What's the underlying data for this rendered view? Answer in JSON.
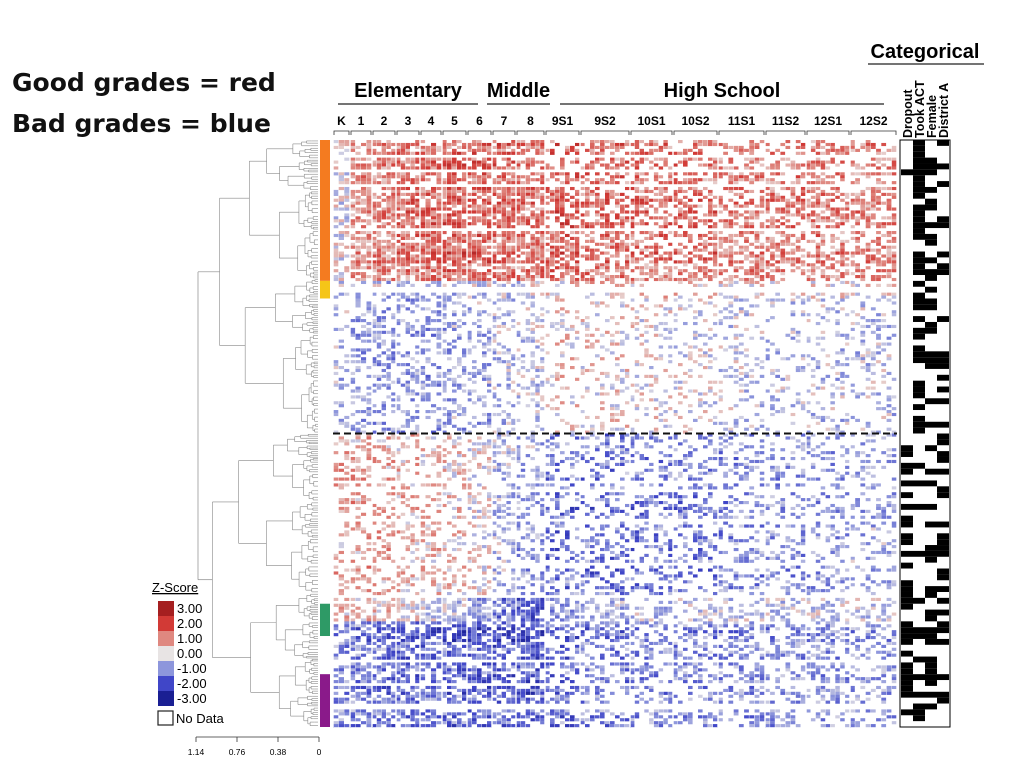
{
  "annotation": {
    "line1": "Good grades = red",
    "line2": "Bad grades = blue"
  },
  "chart_data": {
    "type": "heatmap",
    "title": "Categorical",
    "groups": [
      {
        "label": "Elementary",
        "columns": [
          "K",
          "1",
          "2",
          "3",
          "4",
          "5",
          "6"
        ]
      },
      {
        "label": "Middle",
        "columns": [
          "7",
          "8"
        ]
      },
      {
        "label": "High School",
        "columns": [
          "9S1",
          "9S2",
          "10S1",
          "10S2",
          "11S1",
          "11S2",
          "12S1",
          "12S2"
        ]
      }
    ],
    "categorical_columns": [
      "Dropout",
      "Took ACT",
      "Female",
      "District A"
    ],
    "legend": {
      "title": "Z-Score",
      "entries": [
        {
          "label": "3.00",
          "color": "#a51f20"
        },
        {
          "label": "2.00",
          "color": "#d23a36"
        },
        {
          "label": "1.00",
          "color": "#df8880"
        },
        {
          "label": "0.00",
          "color": "#e8e4e4"
        },
        {
          "label": "-1.00",
          "color": "#8d96dc"
        },
        {
          "label": "-2.00",
          "color": "#4046c8"
        },
        {
          "label": "-3.00",
          "color": "#1a1f93"
        }
      ],
      "no_data_label": "No Data"
    },
    "dendrogram_axis": {
      "ticks": [
        "1.14",
        "0.76",
        "0.38",
        "0"
      ]
    },
    "cluster_colors": [
      "#f47b20",
      "#f5c518",
      "#2e9a66",
      "#8a1a8a"
    ],
    "cluster_split_fraction": 0.5,
    "blocks": [
      {
        "rows": [
          0,
          0.24
        ],
        "trend": [
          -0.1,
          0.8,
          1.0,
          1.2,
          1.3,
          1.4,
          1.4,
          1.3,
          1.2,
          1.4,
          1.2,
          1.2,
          1.2,
          1.0,
          1.0,
          1.0,
          0.9
        ],
        "density": 0.8
      },
      {
        "rows": [
          0.24,
          0.27
        ],
        "trend": [
          -0.6,
          -0.5,
          -0.5,
          -0.4,
          -0.4,
          -0.4,
          -0.3,
          -0.3,
          -0.2,
          0.2,
          0.3,
          0.3,
          0.2,
          0.1,
          0.0,
          0.0,
          0.0
        ],
        "density": 0.7
      },
      {
        "rows": [
          0.27,
          0.5
        ],
        "trend": [
          -0.4,
          -0.7,
          -0.8,
          -0.8,
          -0.8,
          -0.7,
          -0.6,
          -0.4,
          -0.3,
          0.2,
          0.1,
          0.0,
          -0.1,
          -0.3,
          -0.4,
          -0.4,
          -0.4
        ],
        "density": 0.45
      },
      {
        "rows": [
          0.5,
          0.78
        ],
        "trend": [
          0.5,
          0.6,
          0.6,
          0.4,
          0.3,
          0.2,
          0.0,
          -0.4,
          -0.7,
          -1.3,
          -1.3,
          -1.2,
          -1.1,
          -1.0,
          -0.9,
          -0.8,
          -0.7
        ],
        "density": 0.5
      },
      {
        "rows": [
          0.78,
          0.82
        ],
        "trend": [
          0.4,
          0.3,
          0.3,
          0.0,
          -0.2,
          -0.4,
          -0.7,
          -1.2,
          -1.6,
          -0.8,
          -0.5,
          -0.4,
          -0.3,
          -0.3,
          -0.3,
          -0.3,
          -0.2
        ],
        "density": 0.85
      },
      {
        "rows": [
          0.82,
          1.0
        ],
        "trend": [
          -1.0,
          -1.2,
          -1.4,
          -1.5,
          -1.5,
          -1.6,
          -1.6,
          -1.7,
          -1.7,
          -1.4,
          -1.2,
          -1.1,
          -1.0,
          -1.0,
          -0.9,
          -0.9,
          -0.8
        ],
        "density": 0.65
      }
    ]
  }
}
